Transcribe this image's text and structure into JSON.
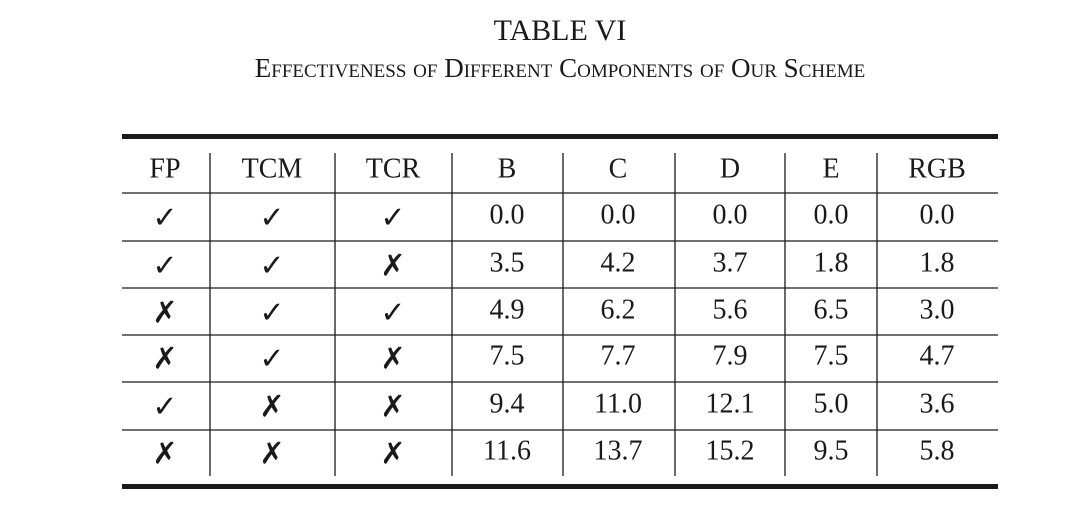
{
  "header": {
    "title": "TABLE VI",
    "caption": "Effectiveness of Different Components of Our Scheme"
  },
  "table": {
    "columns": [
      "FP",
      "TCM",
      "TCR",
      "B",
      "C",
      "D",
      "E",
      "RGB"
    ],
    "rows": [
      [
        "✓",
        "✓",
        "✓",
        "0.0",
        "0.0",
        "0.0",
        "0.0",
        "0.0"
      ],
      [
        "✓",
        "✓",
        "✗",
        "3.5",
        "4.2",
        "3.7",
        "1.8",
        "1.8"
      ],
      [
        "✗",
        "✓",
        "✓",
        "4.9",
        "6.2",
        "5.6",
        "6.5",
        "3.0"
      ],
      [
        "✗",
        "✓",
        "✗",
        "7.5",
        "7.7",
        "7.9",
        "7.5",
        "4.7"
      ],
      [
        "✓",
        "✗",
        "✗",
        "9.4",
        "11.0",
        "12.1",
        "5.0",
        "3.6"
      ],
      [
        "✗",
        "✗",
        "✗",
        "11.6",
        "13.7",
        "15.2",
        "9.5",
        "5.8"
      ]
    ]
  }
}
